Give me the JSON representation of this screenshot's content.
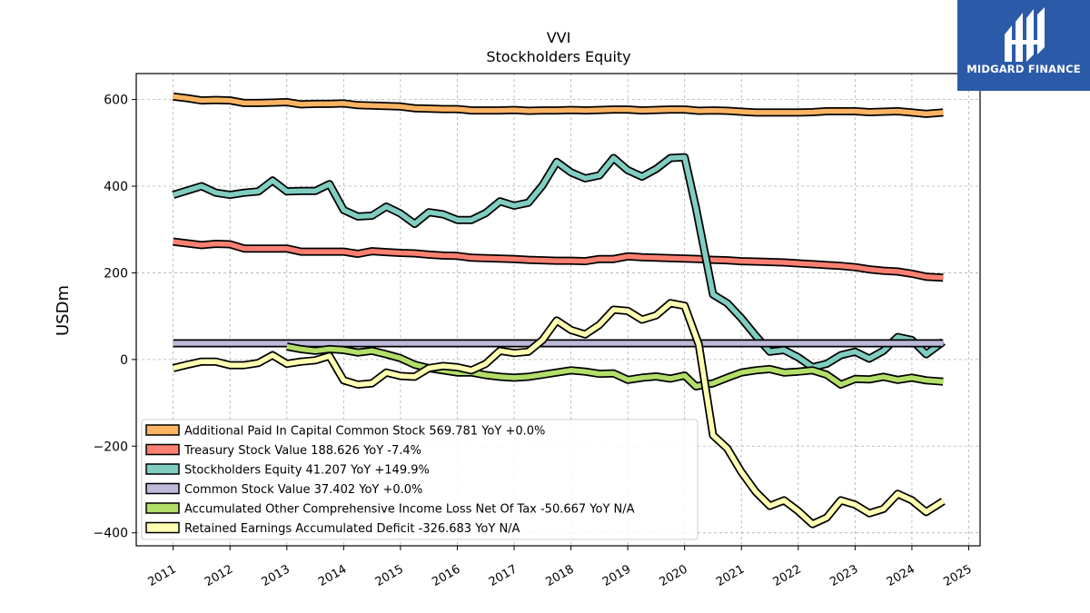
{
  "brand": {
    "name": "MIDGARD FINANCE",
    "bg_color": "#2b5aa8"
  },
  "chart_data": {
    "type": "line",
    "title": "VVI",
    "subtitle": "Stockholders  Equity",
    "ylabel": "USDm",
    "xlim": [
      2010.35,
      2025.2
    ],
    "ylim": [
      -430,
      660
    ],
    "yticks": [
      600,
      400,
      200,
      0,
      -200,
      -400
    ],
    "ytick_labels": [
      "600",
      "400",
      "200",
      "0",
      "−200",
      "−400"
    ],
    "xticks": [
      2011,
      2012,
      2013,
      2014,
      2015,
      2016,
      2017,
      2018,
      2019,
      2020,
      2021,
      2022,
      2023,
      2024,
      2025
    ],
    "xtick_labels": [
      "2011",
      "2012",
      "2013",
      "2014",
      "2015",
      "2016",
      "2017",
      "2018",
      "2019",
      "2020",
      "2021",
      "2022",
      "2023",
      "2024",
      "2025"
    ],
    "grid": true,
    "legend_position": "lower-left",
    "series": [
      {
        "name": "Additional Paid In Capital Common Stock",
        "legend": "Additional Paid In Capital Common Stock  569.781 YoY +0.0%",
        "color": "#fdb462",
        "points": [
          [
            2011.0,
            607
          ],
          [
            2011.25,
            603
          ],
          [
            2011.5,
            598
          ],
          [
            2011.75,
            599
          ],
          [
            2012.0,
            598
          ],
          [
            2012.25,
            592
          ],
          [
            2012.5,
            592
          ],
          [
            2012.75,
            593
          ],
          [
            2013.0,
            594
          ],
          [
            2013.25,
            589
          ],
          [
            2013.5,
            590
          ],
          [
            2013.75,
            590
          ],
          [
            2014.0,
            591
          ],
          [
            2014.25,
            587
          ],
          [
            2014.5,
            586
          ],
          [
            2014.75,
            585
          ],
          [
            2015.0,
            584
          ],
          [
            2015.25,
            580
          ],
          [
            2015.5,
            579
          ],
          [
            2015.75,
            578
          ],
          [
            2016.0,
            578
          ],
          [
            2016.25,
            575
          ],
          [
            2016.5,
            575
          ],
          [
            2016.75,
            575
          ],
          [
            2017.0,
            576
          ],
          [
            2017.25,
            574
          ],
          [
            2017.5,
            575
          ],
          [
            2017.75,
            575
          ],
          [
            2018.0,
            576
          ],
          [
            2018.25,
            575
          ],
          [
            2018.5,
            576
          ],
          [
            2018.75,
            577
          ],
          [
            2019.0,
            577
          ],
          [
            2019.25,
            575
          ],
          [
            2019.5,
            576
          ],
          [
            2019.75,
            577
          ],
          [
            2020.0,
            577
          ],
          [
            2020.25,
            574
          ],
          [
            2020.5,
            575
          ],
          [
            2020.75,
            574
          ],
          [
            2021.0,
            572
          ],
          [
            2021.25,
            570
          ],
          [
            2021.5,
            570
          ],
          [
            2021.75,
            570
          ],
          [
            2022.0,
            570
          ],
          [
            2022.25,
            571
          ],
          [
            2022.5,
            573
          ],
          [
            2022.75,
            573
          ],
          [
            2023.0,
            573
          ],
          [
            2023.25,
            571
          ],
          [
            2023.5,
            572
          ],
          [
            2023.75,
            573
          ],
          [
            2024.0,
            570
          ],
          [
            2024.25,
            567
          ],
          [
            2024.55,
            570
          ]
        ]
      },
      {
        "name": "Treasury Stock Value",
        "legend": "Treasury Stock Value  188.626 YoY -7.4%",
        "color": "#fb8072",
        "points": [
          [
            2011.0,
            272
          ],
          [
            2011.25,
            268
          ],
          [
            2011.5,
            264
          ],
          [
            2011.75,
            267
          ],
          [
            2012.0,
            266
          ],
          [
            2012.25,
            256
          ],
          [
            2012.5,
            256
          ],
          [
            2012.75,
            256
          ],
          [
            2013.0,
            256
          ],
          [
            2013.25,
            249
          ],
          [
            2013.5,
            249
          ],
          [
            2013.75,
            249
          ],
          [
            2014.0,
            249
          ],
          [
            2014.25,
            244
          ],
          [
            2014.5,
            250
          ],
          [
            2014.75,
            248
          ],
          [
            2015.0,
            246
          ],
          [
            2015.25,
            245
          ],
          [
            2015.5,
            242
          ],
          [
            2015.75,
            240
          ],
          [
            2016.0,
            239
          ],
          [
            2016.25,
            235
          ],
          [
            2016.5,
            234
          ],
          [
            2016.75,
            233
          ],
          [
            2017.0,
            232
          ],
          [
            2017.25,
            230
          ],
          [
            2017.5,
            229
          ],
          [
            2017.75,
            228
          ],
          [
            2018.0,
            228
          ],
          [
            2018.25,
            227
          ],
          [
            2018.5,
            232
          ],
          [
            2018.75,
            232
          ],
          [
            2019.0,
            238
          ],
          [
            2019.25,
            236
          ],
          [
            2019.5,
            235
          ],
          [
            2019.75,
            234
          ],
          [
            2020.0,
            233
          ],
          [
            2020.25,
            232
          ],
          [
            2020.5,
            230
          ],
          [
            2020.75,
            229
          ],
          [
            2021.0,
            227
          ],
          [
            2021.25,
            226
          ],
          [
            2021.5,
            225
          ],
          [
            2021.75,
            224
          ],
          [
            2022.0,
            222
          ],
          [
            2022.25,
            220
          ],
          [
            2022.5,
            218
          ],
          [
            2022.75,
            216
          ],
          [
            2023.0,
            213
          ],
          [
            2023.25,
            208
          ],
          [
            2023.5,
            205
          ],
          [
            2023.75,
            203
          ],
          [
            2024.0,
            198
          ],
          [
            2024.25,
            191
          ],
          [
            2024.55,
            189
          ]
        ]
      },
      {
        "name": "Stockholders Equity",
        "legend": "Stockholders Equity  41.207 YoY +149.9%",
        "color": "#80cdc1",
        "points": [
          [
            2011.0,
            380
          ],
          [
            2011.25,
            390
          ],
          [
            2011.5,
            400
          ],
          [
            2011.75,
            385
          ],
          [
            2012.0,
            380
          ],
          [
            2012.25,
            385
          ],
          [
            2012.5,
            388
          ],
          [
            2012.75,
            413
          ],
          [
            2013.0,
            388
          ],
          [
            2013.25,
            389
          ],
          [
            2013.5,
            389
          ],
          [
            2013.75,
            405
          ],
          [
            2014.0,
            345
          ],
          [
            2014.25,
            330
          ],
          [
            2014.5,
            332
          ],
          [
            2014.75,
            353
          ],
          [
            2015.0,
            337
          ],
          [
            2015.25,
            313
          ],
          [
            2015.5,
            340
          ],
          [
            2015.75,
            335
          ],
          [
            2016.0,
            322
          ],
          [
            2016.25,
            322
          ],
          [
            2016.5,
            338
          ],
          [
            2016.75,
            365
          ],
          [
            2017.0,
            355
          ],
          [
            2017.25,
            362
          ],
          [
            2017.5,
            402
          ],
          [
            2017.75,
            456
          ],
          [
            2018.0,
            432
          ],
          [
            2018.25,
            418
          ],
          [
            2018.5,
            425
          ],
          [
            2018.75,
            465
          ],
          [
            2019.0,
            437
          ],
          [
            2019.25,
            422
          ],
          [
            2019.5,
            440
          ],
          [
            2019.75,
            465
          ],
          [
            2020.0,
            467
          ],
          [
            2020.2,
            350
          ],
          [
            2020.5,
            150
          ],
          [
            2020.75,
            130
          ],
          [
            2021.0,
            95
          ],
          [
            2021.25,
            55
          ],
          [
            2021.5,
            18
          ],
          [
            2021.75,
            22
          ],
          [
            2022.0,
            5
          ],
          [
            2022.25,
            -18
          ],
          [
            2022.5,
            -10
          ],
          [
            2022.75,
            10
          ],
          [
            2023.0,
            18
          ],
          [
            2023.25,
            2
          ],
          [
            2023.5,
            20
          ],
          [
            2023.75,
            52
          ],
          [
            2024.0,
            45
          ],
          [
            2024.25,
            12
          ],
          [
            2024.55,
            41
          ]
        ]
      },
      {
        "name": "Common Stock Value",
        "legend": "Common Stock Value  37.402 YoY +0.0%",
        "color": "#bebada",
        "points": [
          [
            2011.0,
            37.402
          ],
          [
            2024.55,
            37.402
          ]
        ]
      },
      {
        "name": "Accumulated Other Comprehensive Income Loss Net Of Tax",
        "legend": "Accumulated Other Comprehensive Income Loss Net Of Tax  -50.667 YoY N/A",
        "color": "#b3de69",
        "points": [
          [
            2013.0,
            30
          ],
          [
            2013.25,
            24
          ],
          [
            2013.5,
            20
          ],
          [
            2013.75,
            24
          ],
          [
            2014.0,
            22
          ],
          [
            2014.25,
            16
          ],
          [
            2014.5,
            20
          ],
          [
            2014.75,
            12
          ],
          [
            2015.0,
            3
          ],
          [
            2015.25,
            -12
          ],
          [
            2015.5,
            -20
          ],
          [
            2015.75,
            -25
          ],
          [
            2016.0,
            -30
          ],
          [
            2016.25,
            -30
          ],
          [
            2016.5,
            -36
          ],
          [
            2016.75,
            -40
          ],
          [
            2017.0,
            -42
          ],
          [
            2017.25,
            -40
          ],
          [
            2017.5,
            -35
          ],
          [
            2017.75,
            -30
          ],
          [
            2018.0,
            -25
          ],
          [
            2018.25,
            -28
          ],
          [
            2018.5,
            -33
          ],
          [
            2018.75,
            -32
          ],
          [
            2019.0,
            -47
          ],
          [
            2019.25,
            -42
          ],
          [
            2019.5,
            -39
          ],
          [
            2019.75,
            -44
          ],
          [
            2020.0,
            -37
          ],
          [
            2020.2,
            -62
          ],
          [
            2020.5,
            -55
          ],
          [
            2020.75,
            -42
          ],
          [
            2021.0,
            -30
          ],
          [
            2021.25,
            -25
          ],
          [
            2021.5,
            -22
          ],
          [
            2021.75,
            -30
          ],
          [
            2022.0,
            -28
          ],
          [
            2022.25,
            -25
          ],
          [
            2022.5,
            -35
          ],
          [
            2022.75,
            -58
          ],
          [
            2023.0,
            -45
          ],
          [
            2023.25,
            -46
          ],
          [
            2023.5,
            -40
          ],
          [
            2023.75,
            -47
          ],
          [
            2024.0,
            -42
          ],
          [
            2024.25,
            -48
          ],
          [
            2024.55,
            -51
          ]
        ]
      },
      {
        "name": "Retained Earnings Accumulated Deficit",
        "legend": "Retained Earnings Accumulated Deficit  -326.683 YoY N/A",
        "color": "#ffffb3",
        "points": [
          [
            2011.0,
            -20
          ],
          [
            2011.25,
            -12
          ],
          [
            2011.5,
            -5
          ],
          [
            2011.75,
            -5
          ],
          [
            2012.0,
            -13
          ],
          [
            2012.25,
            -13
          ],
          [
            2012.5,
            -8
          ],
          [
            2012.75,
            10
          ],
          [
            2013.0,
            -10
          ],
          [
            2013.25,
            -5
          ],
          [
            2013.5,
            -2
          ],
          [
            2013.75,
            8
          ],
          [
            2014.0,
            -48
          ],
          [
            2014.25,
            -58
          ],
          [
            2014.5,
            -55
          ],
          [
            2014.75,
            -30
          ],
          [
            2015.0,
            -38
          ],
          [
            2015.25,
            -40
          ],
          [
            2015.5,
            -20
          ],
          [
            2015.75,
            -15
          ],
          [
            2016.0,
            -18
          ],
          [
            2016.25,
            -25
          ],
          [
            2016.5,
            -10
          ],
          [
            2016.75,
            20
          ],
          [
            2017.0,
            15
          ],
          [
            2017.25,
            18
          ],
          [
            2017.5,
            45
          ],
          [
            2017.75,
            90
          ],
          [
            2018.0,
            68
          ],
          [
            2018.25,
            58
          ],
          [
            2018.5,
            80
          ],
          [
            2018.75,
            115
          ],
          [
            2019.0,
            112
          ],
          [
            2019.25,
            92
          ],
          [
            2019.5,
            102
          ],
          [
            2019.75,
            130
          ],
          [
            2020.0,
            124
          ],
          [
            2020.25,
            35
          ],
          [
            2020.5,
            -175
          ],
          [
            2020.75,
            -205
          ],
          [
            2021.0,
            -260
          ],
          [
            2021.25,
            -305
          ],
          [
            2021.5,
            -338
          ],
          [
            2021.75,
            -325
          ],
          [
            2022.0,
            -350
          ],
          [
            2022.25,
            -380
          ],
          [
            2022.5,
            -365
          ],
          [
            2022.75,
            -325
          ],
          [
            2023.0,
            -335
          ],
          [
            2023.25,
            -355
          ],
          [
            2023.5,
            -345
          ],
          [
            2023.75,
            -310
          ],
          [
            2024.0,
            -325
          ],
          [
            2024.25,
            -352
          ],
          [
            2024.55,
            -327
          ]
        ]
      }
    ]
  }
}
